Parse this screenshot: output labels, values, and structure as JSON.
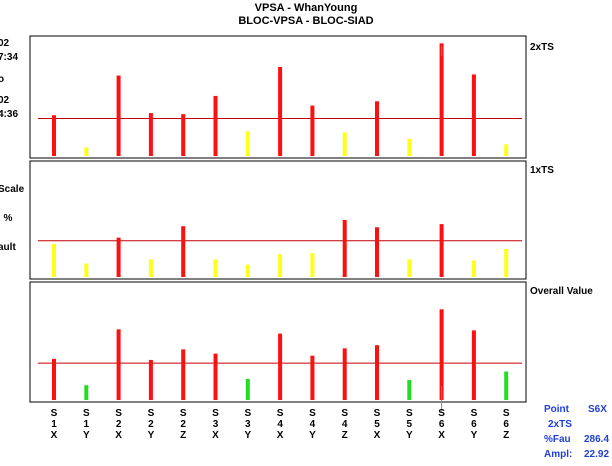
{
  "header": {
    "title": "VPSA - WhanYoung",
    "subtitle": "BLOC-VPSA  - BLOC-SIAD"
  },
  "left_fragments": [
    "02",
    "7:34",
    "o",
    "02",
    "4:36",
    "Scale",
    ". %",
    "ault"
  ],
  "info_box": {
    "point_label": "Point",
    "point_value": "S6X",
    "mode_value": "2xTS",
    "fau_label": "%Fau",
    "fau_value": "286.4",
    "ampl_label": "Ampl:",
    "ampl_value": "22.92"
  },
  "colors": {
    "red": "#ff1010",
    "yellow": "#ffff1a",
    "green": "#22dd22",
    "limit": "#c00000"
  },
  "chart_data": [
    {
      "type": "bar",
      "label": "2xTS",
      "ylim": [
        0,
        110
      ],
      "limit_line": 35,
      "categories": [
        [
          "S",
          "1",
          "X"
        ],
        [
          "S",
          "1",
          "Y"
        ],
        [
          "S",
          "2",
          "X"
        ],
        [
          "S",
          "2",
          "Y"
        ],
        [
          "S",
          "2",
          "Z"
        ],
        [
          "S",
          "3",
          "X"
        ],
        [
          "S",
          "3",
          "Y"
        ],
        [
          "S",
          "4",
          "X"
        ],
        [
          "S",
          "4",
          "Y"
        ],
        [
          "S",
          "4",
          "Z"
        ],
        [
          "S",
          "5",
          "X"
        ],
        [
          "S",
          "5",
          "Y"
        ],
        [
          "S",
          "6",
          "X"
        ],
        [
          "S",
          "6",
          "Y"
        ],
        [
          "S",
          "6",
          "Z"
        ]
      ],
      "values": [
        38,
        8,
        75,
        40,
        39,
        56,
        23,
        83,
        47,
        22,
        51,
        16,
        105,
        76,
        11
      ],
      "colors": [
        "red",
        "yellow",
        "red",
        "red",
        "red",
        "red",
        "yellow",
        "red",
        "red",
        "yellow",
        "red",
        "yellow",
        "red",
        "red",
        "yellow"
      ]
    },
    {
      "type": "bar",
      "label": "1xTS",
      "ylim": [
        0,
        110
      ],
      "limit_line": 35,
      "categories": [
        [
          "S",
          "1",
          "X"
        ],
        [
          "S",
          "1",
          "Y"
        ],
        [
          "S",
          "2",
          "X"
        ],
        [
          "S",
          "2",
          "Y"
        ],
        [
          "S",
          "2",
          "Z"
        ],
        [
          "S",
          "3",
          "X"
        ],
        [
          "S",
          "3",
          "Y"
        ],
        [
          "S",
          "4",
          "X"
        ],
        [
          "S",
          "4",
          "Y"
        ],
        [
          "S",
          "4",
          "Z"
        ],
        [
          "S",
          "5",
          "X"
        ],
        [
          "S",
          "5",
          "Y"
        ],
        [
          "S",
          "6",
          "X"
        ],
        [
          "S",
          "6",
          "Y"
        ],
        [
          "S",
          "6",
          "Z"
        ]
      ],
      "values": [
        32,
        13,
        38,
        17,
        49,
        17,
        12,
        22,
        23,
        55,
        48,
        17,
        51,
        16,
        27
      ],
      "colors": [
        "yellow",
        "yellow",
        "red",
        "yellow",
        "red",
        "yellow",
        "yellow",
        "yellow",
        "yellow",
        "red",
        "red",
        "yellow",
        "red",
        "yellow",
        "yellow"
      ]
    },
    {
      "type": "bar",
      "label": "Overall Value",
      "ylim": [
        0,
        110
      ],
      "limit_line": 35,
      "categories": [
        [
          "S",
          "1",
          "X"
        ],
        [
          "S",
          "1",
          "Y"
        ],
        [
          "S",
          "2",
          "X"
        ],
        [
          "S",
          "2",
          "Y"
        ],
        [
          "S",
          "2",
          "Z"
        ],
        [
          "S",
          "3",
          "X"
        ],
        [
          "S",
          "3",
          "Y"
        ],
        [
          "S",
          "4",
          "X"
        ],
        [
          "S",
          "4",
          "Y"
        ],
        [
          "S",
          "4",
          "Z"
        ],
        [
          "S",
          "5",
          "X"
        ],
        [
          "S",
          "5",
          "Y"
        ],
        [
          "S",
          "6",
          "X"
        ],
        [
          "S",
          "6",
          "Y"
        ],
        [
          "S",
          "6",
          "Z"
        ]
      ],
      "values": [
        39,
        14,
        67,
        38,
        48,
        44,
        20,
        63,
        42,
        49,
        52,
        19,
        86,
        66,
        27
      ],
      "colors": [
        "red",
        "green",
        "red",
        "red",
        "red",
        "red",
        "green",
        "red",
        "red",
        "red",
        "red",
        "green",
        "red",
        "red",
        "green"
      ]
    }
  ]
}
